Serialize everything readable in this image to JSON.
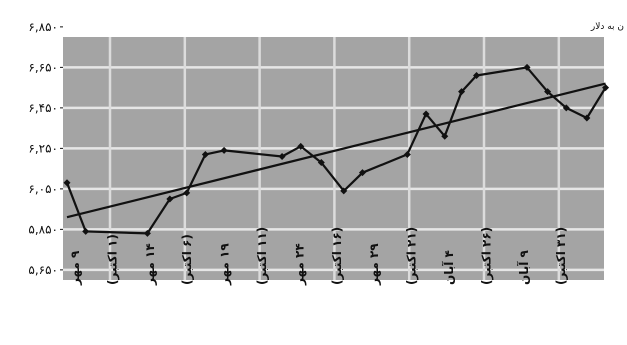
{
  "chart_data": {
    "type": "line",
    "title": "",
    "unit_label": "ن به دلار",
    "ylim": [
      5.6,
      6.8
    ],
    "yticks": [
      5.65,
      5.85,
      6.05,
      6.25,
      6.45,
      6.65,
      6.85
    ],
    "ytick_labels": [
      "۵,۶۵۰",
      "۵,۸۵۰",
      "۶,۰۵۰",
      "۶,۲۵۰",
      "۶,۴۵۰",
      "۶,۶۵۰",
      "۶,۸۵۰"
    ],
    "x_labels": [
      "۹ مهر",
      "(۱ اکتبر)",
      "۱۴ مهر",
      "(۶ اکتبر)",
      "۱۹ مهر",
      "(۱۱ اکتبر)",
      "۲۴ مهر",
      "(۱۶ اکتبر)",
      "۲۹ مهر",
      "(۲۱ اکتبر)",
      "۴ آبان",
      "(۲۶ اکتبر)",
      "۹ آبان",
      "(۳۱ اکتبر)"
    ],
    "grid": true,
    "series": [
      {
        "values": [
          {
            "x": 0,
            "y": 6.08
          },
          {
            "x": 0.5,
            "y": 5.84
          },
          {
            "x": 2.15,
            "y": 5.83
          },
          {
            "x": 2.75,
            "y": 6.0
          },
          {
            "x": 3.2,
            "y": 6.03
          },
          {
            "x": 3.7,
            "y": 6.22
          },
          {
            "x": 4.2,
            "y": 6.24
          },
          {
            "x": 5.75,
            "y": 6.21
          },
          {
            "x": 6.25,
            "y": 6.26
          },
          {
            "x": 6.8,
            "y": 6.18
          },
          {
            "x": 7.4,
            "y": 6.04
          },
          {
            "x": 7.9,
            "y": 6.13
          },
          {
            "x": 9.1,
            "y": 6.22
          },
          {
            "x": 9.6,
            "y": 6.42
          },
          {
            "x": 10.1,
            "y": 6.31
          },
          {
            "x": 10.55,
            "y": 6.53
          },
          {
            "x": 10.95,
            "y": 6.61
          },
          {
            "x": 12.3,
            "y": 6.65
          },
          {
            "x": 12.85,
            "y": 6.53
          },
          {
            "x": 13.35,
            "y": 6.45
          },
          {
            "x": 13.9,
            "y": 6.4
          },
          {
            "x": 14.4,
            "y": 6.55
          }
        ]
      }
    ],
    "trendline": [
      {
        "x": 0,
        "y": 5.91
      },
      {
        "x": 14.4,
        "y": 6.57
      }
    ]
  }
}
